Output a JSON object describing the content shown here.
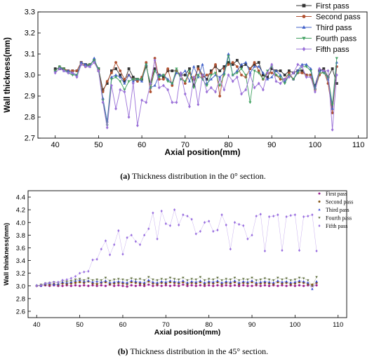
{
  "chart_data": [
    {
      "type": "line",
      "xlabel": "Axial position(mm)",
      "ylabel": "Wall thickness(mm)",
      "xlim": [
        36,
        112
      ],
      "ylim": [
        2.7,
        3.3
      ],
      "xticks": [
        "40",
        "50",
        "60",
        "70",
        "80",
        "90",
        "100",
        "110"
      ],
      "yticks": [
        "2.7",
        "2.8",
        "2.9",
        "3.0",
        "3.1",
        "3.2",
        "3.3"
      ],
      "legend_position": "top-right",
      "grid": false,
      "x": [
        40,
        41,
        42,
        43,
        44,
        45,
        46,
        47,
        48,
        49,
        50,
        51,
        52,
        53,
        54,
        55,
        56,
        57,
        58,
        59,
        60,
        61,
        62,
        63,
        64,
        65,
        66,
        67,
        68,
        69,
        70,
        71,
        72,
        73,
        74,
        75,
        76,
        77,
        78,
        79,
        80,
        81,
        82,
        83,
        84,
        85,
        86,
        87,
        88,
        89,
        90,
        91,
        92,
        93,
        94,
        95,
        96,
        97,
        98,
        99,
        100,
        101,
        102,
        103,
        104,
        105
      ],
      "series": [
        {
          "name": "First pass",
          "color": "#333333",
          "marker": "square",
          "values": [
            3.03,
            3.03,
            3.03,
            3.02,
            3.02,
            3.02,
            3.06,
            3.05,
            3.05,
            3.07,
            3.03,
            2.93,
            2.96,
            3.02,
            3.03,
            3.0,
            2.97,
            3.03,
            2.99,
            2.98,
            2.98,
            3.04,
            2.96,
            3.03,
            3.0,
            2.99,
            3.02,
            3.02,
            3.02,
            3.0,
            3.0,
            3.03,
            2.95,
            3.04,
            3.0,
            2.98,
            3.02,
            3.04,
            3.02,
            3.04,
            3.06,
            3.05,
            3.07,
            3.04,
            3.05,
            3.03,
            3.05,
            3.06,
            3.0,
            2.99,
            3.03,
            3.02,
            3.02,
            3.0,
            3.02,
            3.01,
            3.02,
            3.02,
            3.0,
            3.0,
            2.95,
            3.02,
            3.03,
            2.99,
            3.03,
            2.96
          ]
        },
        {
          "name": "Second pass",
          "color": "#b05030",
          "marker": "circle",
          "values": [
            3.02,
            3.04,
            3.03,
            3.02,
            3.02,
            3.02,
            3.06,
            3.04,
            3.05,
            3.07,
            3.02,
            2.92,
            2.97,
            3.01,
            3.06,
            3.02,
            2.98,
            3.0,
            2.98,
            2.97,
            2.99,
            3.06,
            2.92,
            3.08,
            2.98,
            2.98,
            3.03,
            2.95,
            3.02,
            3.0,
            2.96,
            3.01,
            2.98,
            3.03,
            2.99,
            3.0,
            3.01,
            3.05,
            2.9,
            3.03,
            3.05,
            3.06,
            3.04,
            3.0,
            2.99,
            3.03,
            3.06,
            3.02,
            2.98,
            3.01,
            3.01,
            3.0,
            2.98,
            2.98,
            3.01,
            2.98,
            3.01,
            3.01,
            3.0,
            3.0,
            2.93,
            3.0,
            3.02,
            2.96,
            2.82,
            3.04
          ]
        },
        {
          "name": "Third pass",
          "color": "#4060c8",
          "marker": "triangle-up",
          "values": [
            3.02,
            3.04,
            3.02,
            3.02,
            3.01,
            3.0,
            3.06,
            3.05,
            3.04,
            3.08,
            3.02,
            2.89,
            2.78,
            2.99,
            3.0,
            2.99,
            2.96,
            3.0,
            2.97,
            2.98,
            2.97,
            3.05,
            2.94,
            2.95,
            3.0,
            3.0,
            2.98,
            2.96,
            3.01,
            3.0,
            3.02,
            2.97,
            3.04,
            2.99,
            3.05,
            2.96,
            2.98,
            3.0,
            2.99,
            3.01,
            3.1,
            3.0,
            3.02,
            3.05,
            3.06,
            3.01,
            3.04,
            3.04,
            3.01,
            2.98,
            2.99,
            3.02,
            3.0,
            2.97,
            3.0,
            2.98,
            3.02,
            3.05,
            3.05,
            3.03,
            2.94,
            3.02,
            3.02,
            2.98,
            2.84,
            3.06
          ]
        },
        {
          "name": "Fourth pass",
          "color": "#40a060",
          "marker": "triangle-down",
          "values": [
            3.02,
            3.04,
            3.03,
            3.01,
            3.0,
            3.0,
            3.05,
            3.04,
            3.05,
            3.07,
            3.03,
            2.88,
            2.76,
            2.98,
            2.99,
            2.97,
            2.93,
            2.97,
            2.98,
            2.98,
            2.98,
            3.05,
            2.94,
            3.02,
            2.99,
            3.0,
            2.97,
            2.96,
            3.03,
            2.98,
            2.97,
            3.02,
            2.94,
            3.0,
            2.98,
            2.95,
            3.0,
            3.01,
            2.95,
            3.0,
            3.09,
            3.0,
            3.01,
            3.03,
            3.0,
            2.87,
            3.02,
            3.01,
            2.98,
            3.02,
            3.04,
            3.0,
            2.99,
            2.96,
            3.0,
            2.98,
            3.01,
            3.04,
            3.04,
            3.02,
            2.93,
            3.01,
            3.01,
            2.99,
            2.86,
            3.08
          ]
        },
        {
          "name": "Fifth pass",
          "color": "#9a70d8",
          "marker": "diamond",
          "values": [
            3.01,
            3.03,
            3.02,
            3.01,
            3.01,
            2.99,
            3.05,
            3.04,
            3.04,
            3.06,
            3.02,
            2.87,
            2.75,
            2.95,
            2.84,
            2.93,
            2.92,
            2.8,
            2.96,
            2.76,
            2.88,
            2.87,
            2.96,
            3.07,
            2.94,
            2.95,
            2.93,
            2.87,
            2.87,
            3.01,
            2.91,
            2.85,
            2.99,
            2.86,
            3.0,
            2.92,
            2.94,
            2.92,
            2.98,
            2.93,
            3.0,
            2.97,
            2.99,
            2.91,
            2.93,
            3.0,
            2.94,
            2.96,
            2.93,
            3.01,
            3.05,
            2.97,
            2.96,
            2.98,
            2.99,
            3.01,
            3.05,
            3.04,
            2.99,
            2.99,
            2.92,
            3.03,
            3.02,
            3.02,
            2.74,
            3.0
          ]
        }
      ]
    },
    {
      "type": "line",
      "xlabel": "Axial position(mm)",
      "ylabel": "Wall thinkness(mm)",
      "xlim": [
        38,
        112
      ],
      "ylim": [
        2.5,
        4.5
      ],
      "xticks": [
        "40",
        "50",
        "60",
        "70",
        "80",
        "90",
        "100",
        "110"
      ],
      "yticks": [
        "2.6",
        "2.8",
        "3.0",
        "3.2",
        "3.4",
        "3.6",
        "3.8",
        "4.0",
        "4.2",
        "4.4"
      ],
      "legend_position": "top-right",
      "grid": false,
      "x": [
        40,
        41,
        42,
        43,
        44,
        45,
        46,
        47,
        48,
        49,
        50,
        51,
        52,
        53,
        54,
        55,
        56,
        57,
        58,
        59,
        60,
        61,
        62,
        63,
        64,
        65,
        66,
        67,
        68,
        69,
        70,
        71,
        72,
        73,
        74,
        75,
        76,
        77,
        78,
        79,
        80,
        81,
        82,
        83,
        84,
        85,
        86,
        87,
        88,
        89,
        90,
        91,
        92,
        93,
        94,
        95,
        96,
        97,
        98,
        99,
        100,
        101,
        102,
        103,
        104,
        105
      ],
      "series": [
        {
          "name": "First pass",
          "color": "#9a2090",
          "marker": "circle",
          "values": [
            3.0,
            3.0,
            3.01,
            3.0,
            3.01,
            3.0,
            3.0,
            3.01,
            3.0,
            3.01,
            3.0,
            3.01,
            3.0,
            3.01,
            3.0,
            3.01,
            3.0,
            3.02,
            3.0,
            3.01,
            3.0,
            2.99,
            3.01,
            3.0,
            3.01,
            3.0,
            3.02,
            3.0,
            3.01,
            3.0,
            3.01,
            3.0,
            3.01,
            3.0,
            3.02,
            3.0,
            3.01,
            3.0,
            3.01,
            3.0,
            3.01,
            3.0,
            3.01,
            3.0,
            3.01,
            3.0,
            3.01,
            3.0,
            3.01,
            3.0,
            3.0,
            3.01,
            3.0,
            3.01,
            3.0,
            3.01,
            3.0,
            3.01,
            3.0,
            3.01,
            3.0,
            3.01,
            3.0,
            3.01,
            3.0,
            3.01
          ]
        },
        {
          "name": "Second pass",
          "color": "#805010",
          "marker": "circle",
          "values": [
            3.0,
            3.01,
            3.02,
            3.02,
            3.03,
            3.02,
            3.04,
            3.03,
            3.04,
            3.05,
            3.06,
            3.05,
            3.07,
            3.04,
            3.03,
            3.05,
            3.06,
            3.03,
            3.04,
            3.05,
            3.04,
            3.03,
            3.06,
            3.05,
            3.04,
            3.03,
            3.07,
            3.04,
            3.03,
            3.05,
            3.04,
            3.06,
            3.05,
            3.04,
            3.06,
            3.03,
            3.05,
            3.04,
            3.06,
            3.03,
            3.05,
            3.04,
            3.06,
            3.03,
            3.05,
            3.04,
            3.06,
            3.03,
            3.05,
            3.04,
            3.06,
            3.03,
            3.04,
            3.05,
            3.04,
            3.03,
            3.06,
            3.04,
            3.05,
            3.03,
            3.04,
            3.06,
            3.05,
            3.03,
            3.02,
            3.05
          ]
        },
        {
          "name": "Third pass",
          "color": "#3040d0",
          "marker": "triangle-up",
          "values": [
            3.01,
            3.0,
            3.03,
            3.04,
            3.02,
            3.03,
            3.06,
            3.05,
            3.06,
            3.08,
            3.09,
            3.07,
            3.08,
            3.06,
            3.07,
            3.06,
            3.08,
            3.05,
            3.06,
            3.07,
            3.06,
            3.05,
            3.08,
            3.07,
            3.06,
            3.05,
            3.09,
            3.06,
            3.05,
            3.07,
            3.06,
            3.08,
            3.07,
            3.06,
            3.08,
            3.05,
            3.07,
            3.06,
            3.08,
            3.05,
            3.07,
            3.06,
            3.08,
            3.05,
            3.07,
            3.06,
            3.08,
            3.05,
            3.07,
            3.06,
            3.08,
            3.05,
            3.06,
            3.07,
            3.06,
            3.05,
            3.08,
            3.06,
            3.07,
            3.05,
            3.06,
            3.08,
            3.07,
            3.05,
            2.95,
            3.07
          ]
        },
        {
          "name": "Fourth pass",
          "color": "#607040",
          "marker": "triangle-down",
          "values": [
            3.0,
            3.02,
            3.04,
            3.05,
            3.06,
            3.05,
            3.08,
            3.07,
            3.08,
            3.1,
            3.11,
            3.09,
            3.12,
            3.09,
            3.1,
            3.09,
            3.13,
            3.08,
            3.1,
            3.11,
            3.1,
            3.09,
            3.12,
            3.1,
            3.11,
            3.09,
            3.14,
            3.1,
            3.09,
            3.11,
            3.1,
            3.13,
            3.11,
            3.1,
            3.13,
            3.09,
            3.11,
            3.1,
            3.14,
            3.09,
            3.11,
            3.1,
            3.13,
            3.09,
            3.11,
            3.1,
            3.13,
            3.09,
            3.11,
            3.1,
            3.13,
            3.09,
            3.1,
            3.12,
            3.1,
            3.09,
            3.13,
            3.1,
            3.12,
            3.09,
            3.1,
            3.13,
            3.12,
            3.09,
            3.0,
            3.14
          ]
        },
        {
          "name": "Fifth pass",
          "color": "#9a70e0",
          "marker": "diamond",
          "values": [
            3.0,
            3.01,
            3.04,
            3.05,
            3.06,
            3.06,
            3.09,
            3.1,
            3.12,
            3.15,
            3.2,
            3.22,
            3.23,
            3.41,
            3.42,
            3.58,
            3.71,
            3.49,
            3.65,
            3.87,
            3.5,
            3.76,
            3.8,
            3.7,
            3.65,
            3.8,
            3.9,
            4.15,
            3.74,
            4.18,
            3.98,
            3.95,
            4.2,
            3.96,
            4.12,
            4.1,
            4.05,
            3.82,
            3.86,
            4.0,
            4.02,
            3.86,
            3.88,
            4.12,
            3.96,
            3.58,
            4.0,
            3.97,
            3.95,
            3.74,
            3.8,
            4.1,
            4.13,
            3.55,
            4.09,
            4.1,
            4.12,
            3.56,
            4.09,
            4.11,
            4.12,
            3.56,
            4.09,
            4.1,
            4.12,
            3.55
          ]
        }
      ]
    }
  ],
  "captions": {
    "a_label": "(a)",
    "a_text": " Thickness distribution in the 0° section.",
    "b_label": "(b)",
    "b_text": " Thickness distribution in the 45° section."
  }
}
